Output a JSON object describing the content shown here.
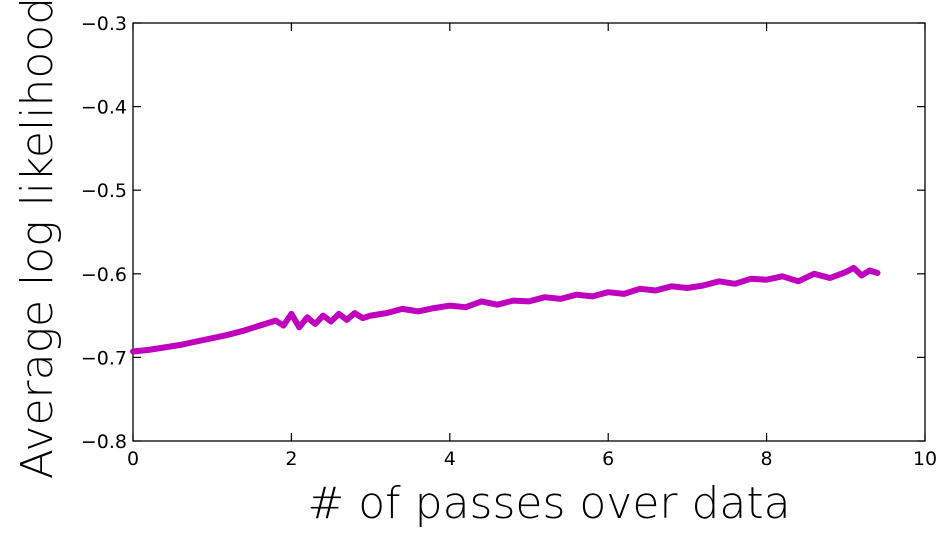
{
  "chart_data": {
    "type": "line",
    "title": "",
    "xlabel": "# of passes over data",
    "ylabel": "Average log likelihood",
    "xlim": [
      0,
      10
    ],
    "ylim": [
      -0.8,
      -0.3
    ],
    "x_ticks": [
      0,
      2,
      4,
      6,
      8,
      10
    ],
    "x_tick_labels": [
      "0",
      "2",
      "4",
      "6",
      "8",
      "10"
    ],
    "y_ticks": [
      -0.8,
      -0.7,
      -0.6,
      -0.5,
      -0.4,
      -0.3
    ],
    "y_tick_labels": [
      "−0.8",
      "−0.7",
      "−0.6",
      "−0.5",
      "−0.4",
      "−0.3"
    ],
    "grid": false,
    "legend": "none",
    "series": [
      {
        "color": "#bf00bf",
        "x": [
          0.0,
          0.2,
          0.4,
          0.6,
          0.8,
          1.0,
          1.2,
          1.4,
          1.6,
          1.8,
          1.9,
          2.0,
          2.1,
          2.2,
          2.3,
          2.4,
          2.5,
          2.6,
          2.7,
          2.8,
          2.9,
          3.0,
          3.2,
          3.4,
          3.6,
          3.8,
          4.0,
          4.2,
          4.4,
          4.6,
          4.8,
          5.0,
          5.2,
          5.4,
          5.6,
          5.8,
          6.0,
          6.2,
          6.4,
          6.6,
          6.8,
          7.0,
          7.2,
          7.4,
          7.6,
          7.8,
          8.0,
          8.2,
          8.4,
          8.6,
          8.8,
          9.0,
          9.1,
          9.2,
          9.3,
          9.4
        ],
        "values": [
          -0.693,
          -0.691,
          -0.688,
          -0.685,
          -0.681,
          -0.677,
          -0.673,
          -0.668,
          -0.662,
          -0.656,
          -0.662,
          -0.648,
          -0.664,
          -0.652,
          -0.66,
          -0.65,
          -0.657,
          -0.648,
          -0.655,
          -0.647,
          -0.653,
          -0.65,
          -0.647,
          -0.642,
          -0.645,
          -0.641,
          -0.638,
          -0.64,
          -0.633,
          -0.637,
          -0.632,
          -0.633,
          -0.628,
          -0.63,
          -0.625,
          -0.627,
          -0.622,
          -0.624,
          -0.618,
          -0.62,
          -0.615,
          -0.617,
          -0.614,
          -0.609,
          -0.612,
          -0.606,
          -0.607,
          -0.603,
          -0.609,
          -0.6,
          -0.605,
          -0.598,
          -0.593,
          -0.602,
          -0.596,
          -0.599
        ]
      }
    ]
  }
}
